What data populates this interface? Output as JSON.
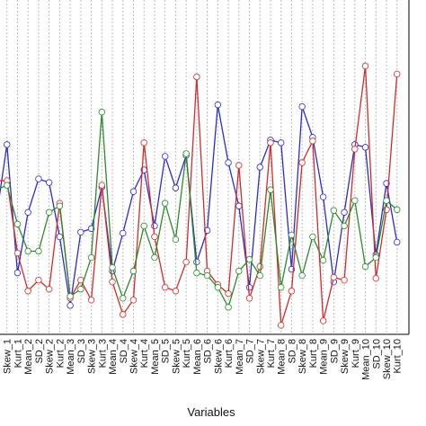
{
  "chart_data": {
    "type": "line",
    "x_label": "Variables",
    "categories": [
      null,
      "Skew_1",
      "Kurt_1",
      "Mean_2",
      "SD_2",
      "Skew_2",
      "Kurt_2",
      "Mean_3",
      "SD_3",
      "Skew_3",
      "Kurt_3",
      "Mean_4",
      "SD_4",
      "Skew_4",
      "Kurt_4",
      "Mean_5",
      "SD_5",
      "Skew_5",
      "Kurt_5",
      "Mean_6",
      "SD_6",
      "Skew_6",
      "Kurt_6",
      "Mean_7",
      "SD_7",
      "Skew_7",
      "Kurt_7",
      "Mean_8",
      "SD_8",
      "Skew_8",
      "Kurt_8",
      "Mean_9",
      "SD_9",
      "Skew_9",
      "Kurt_9",
      "Mean_10",
      "SD_10",
      "Skew_10",
      "Kurt_10"
    ],
    "series": [
      {
        "color": "#2b2bd0",
        "values": [
          130,
          210,
          68,
          135,
          172,
          168,
          108,
          32,
          113,
          117,
          163,
          70,
          112,
          158,
          182,
          120,
          197,
          162,
          198,
          80,
          115,
          254,
          190,
          142,
          52,
          185,
          215,
          212,
          72,
          252,
          218,
          152,
          58,
          135,
          210,
          207,
          88,
          167,
          102
        ]
      },
      {
        "color": "#d42a2a",
        "values": [
          170,
          170,
          90,
          48,
          60,
          50,
          145,
          40,
          60,
          38,
          165,
          58,
          22,
          38,
          212,
          108,
          52,
          48,
          80,
          285,
          70,
          55,
          45,
          187,
          40,
          75,
          212,
          10,
          48,
          190,
          214,
          15,
          63,
          60,
          205,
          297,
          62,
          138,
          288
        ]
      },
      {
        "color": "#2a8a2a",
        "values": [
          160,
          165,
          122,
          92,
          92,
          135,
          142,
          42,
          50,
          85,
          246,
          74,
          40,
          70,
          120,
          85,
          145,
          105,
          200,
          68,
          65,
          52,
          30,
          70,
          83,
          65,
          160,
          52,
          110,
          65,
          108,
          82,
          137,
          120,
          148,
          75,
          85,
          148,
          138
        ]
      }
    ],
    "ylim": [
      0,
      370
    ],
    "grid": true
  }
}
